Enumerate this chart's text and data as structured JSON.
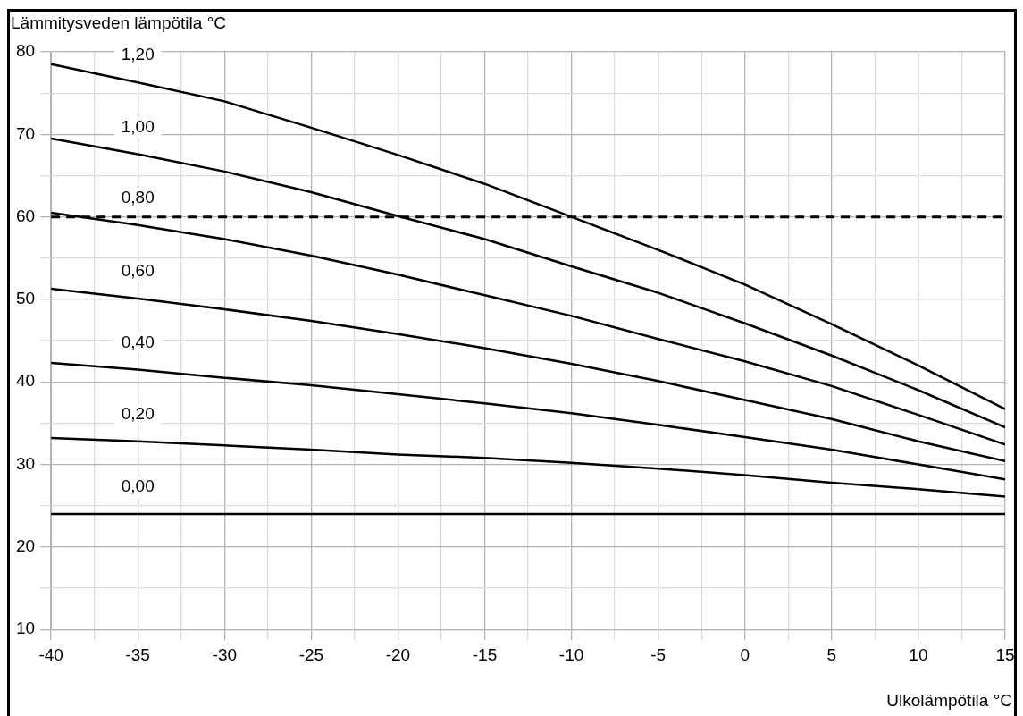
{
  "chart_data": {
    "type": "line",
    "xlabel": "Ulkolämpötila °C",
    "ylabel": "Lämmitysveden lämpötila °C",
    "x": [
      -40,
      -35,
      -30,
      -25,
      -20,
      -15,
      -10,
      -5,
      0,
      5,
      10,
      15
    ],
    "series": [
      {
        "name": "1,20",
        "color": "#000000",
        "values": [
          78.5,
          76.3,
          74,
          70.8,
          67.5,
          64,
          60,
          56,
          51.8,
          47,
          42,
          36.7
        ]
      },
      {
        "name": "1,00",
        "color": "#000000",
        "values": [
          69.5,
          67.6,
          65.5,
          63,
          60.1,
          57.3,
          54,
          50.8,
          47.1,
          43.2,
          39,
          34.5
        ]
      },
      {
        "name": "0,80",
        "color": "#000000",
        "values": [
          60.5,
          59,
          57.3,
          55.3,
          53,
          50.5,
          48,
          45.2,
          42.5,
          39.5,
          36,
          32.4
        ]
      },
      {
        "name": "0,60",
        "color": "#000000",
        "values": [
          51.3,
          50.1,
          48.8,
          47.4,
          45.8,
          44.1,
          42.2,
          40.1,
          37.8,
          35.5,
          32.8,
          30.4
        ]
      },
      {
        "name": "0,40",
        "color": "#000000",
        "values": [
          42.3,
          41.5,
          40.5,
          39.6,
          38.5,
          37.4,
          36.2,
          34.8,
          33.3,
          31.8,
          30,
          28.2
        ]
      },
      {
        "name": "0,20",
        "color": "#000000",
        "values": [
          33.2,
          32.8,
          32.3,
          31.8,
          31.2,
          30.8,
          30.2,
          29.5,
          28.7,
          27.8,
          27,
          26.1
        ]
      },
      {
        "name": "0,00",
        "color": "#000000",
        "values": [
          24,
          24,
          24,
          24,
          24,
          24,
          24,
          24,
          24,
          24,
          24,
          24
        ]
      }
    ],
    "xlim": [
      -40,
      15
    ],
    "xticks": [
      -40,
      {
        "value": -37.5,
        "label": null
      },
      -35,
      {
        "value": -32.5,
        "label": null
      },
      -30,
      {
        "value": -27.5,
        "label": null
      },
      -25,
      {
        "value": -22.5,
        "label": null
      },
      -20,
      {
        "value": -17.5,
        "label": null
      },
      -15,
      {
        "value": -12.5,
        "label": null
      },
      -10,
      {
        "value": -7.5,
        "label": null
      },
      -5,
      {
        "value": -2.5,
        "label": null
      },
      0,
      {
        "value": 2.5,
        "label": null
      },
      5,
      {
        "value": 7.5,
        "label": null
      },
      10,
      {
        "value": 12.5,
        "label": null
      },
      15
    ],
    "ylim": [
      10,
      80
    ],
    "yticks": [
      10,
      {
        "value": 15,
        "label": null
      },
      20,
      {
        "value": 25,
        "label": null
      },
      30,
      {
        "value": 35,
        "label": null
      },
      40,
      {
        "value": 45,
        "label": null
      },
      50,
      {
        "value": 55,
        "label": null
      },
      60,
      {
        "value": 65,
        "label": null
      },
      70,
      {
        "value": 75,
        "label": null
      },
      80
    ],
    "ref_lines": [
      {
        "axis": "y",
        "value": 60,
        "color": "#000000",
        "line_style": "dashed"
      }
    ],
    "grid": true,
    "legend": false,
    "marker": "none",
    "line_style": "solid"
  }
}
